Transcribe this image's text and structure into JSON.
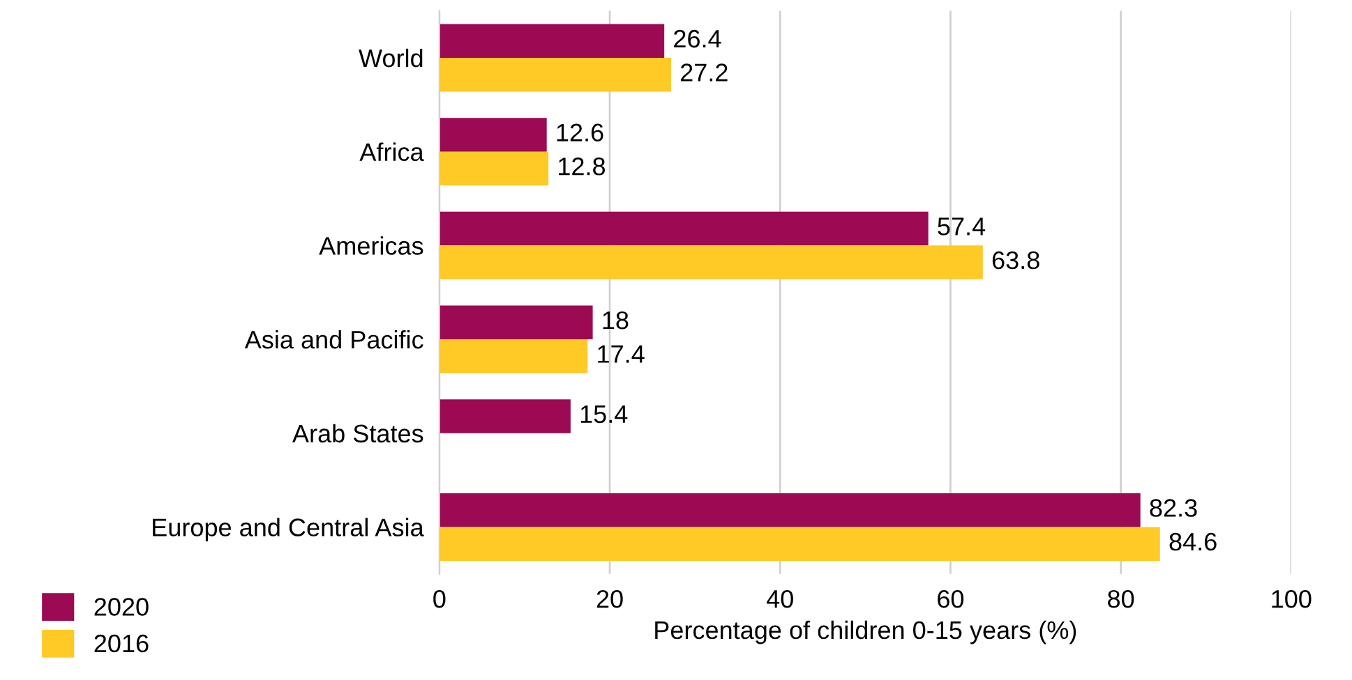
{
  "chart_data": {
    "type": "bar",
    "orientation": "horizontal",
    "xlabel": "Percentage of children 0-15 years (%)",
    "categories": [
      "World",
      "Africa",
      "Americas",
      "Asia and Pacific",
      "Arab States",
      "Europe and Central Asia"
    ],
    "series": [
      {
        "name": "2020",
        "color": "#9b0a52",
        "values": [
          26.4,
          12.6,
          57.4,
          18,
          15.4,
          82.3
        ]
      },
      {
        "name": "2016",
        "color": "#ffc926",
        "values": [
          27.2,
          12.8,
          63.8,
          17.4,
          null,
          84.6
        ]
      }
    ],
    "xlim": [
      0,
      100
    ],
    "xticks": [
      0,
      20,
      40,
      60,
      80,
      100
    ],
    "grid": "x",
    "legend": "bottom left",
    "data_labels": true
  }
}
